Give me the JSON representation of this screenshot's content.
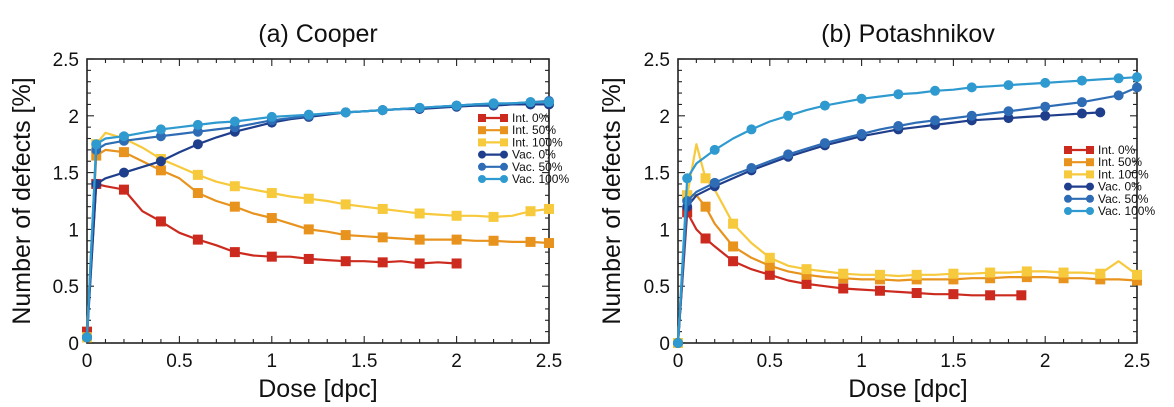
{
  "chart_data": [
    {
      "type": "line",
      "title": "(a) Cooper",
      "xlabel": "Dose [dpc]",
      "ylabel": "Number of defects [%]",
      "xlim": [
        0,
        2.5
      ],
      "ylim": [
        0,
        2.5
      ],
      "xticks": [
        "0",
        "0.5",
        "1",
        "1.5",
        "2",
        "2.5"
      ],
      "yticks": [
        "0",
        "0.5",
        "1",
        "1.5",
        "2",
        "2.5"
      ],
      "legend_position": "right, near top",
      "grid": false,
      "series": [
        {
          "name": "Int.   0%",
          "color": "#cc2a1e",
          "marker": "square",
          "x": [
            0,
            0.05,
            0.1,
            0.2,
            0.3,
            0.4,
            0.5,
            0.6,
            0.7,
            0.8,
            0.9,
            1.0,
            1.1,
            1.2,
            1.3,
            1.4,
            1.5,
            1.6,
            1.7,
            1.8,
            1.9,
            2.0
          ],
          "y": [
            0.1,
            1.4,
            1.38,
            1.35,
            1.16,
            1.07,
            0.97,
            0.91,
            0.86,
            0.8,
            0.77,
            0.76,
            0.76,
            0.74,
            0.73,
            0.72,
            0.72,
            0.71,
            0.72,
            0.7,
            0.71,
            0.7
          ]
        },
        {
          "name": "Int.   50%",
          "color": "#e8931d",
          "marker": "square",
          "x": [
            0,
            0.05,
            0.1,
            0.2,
            0.3,
            0.4,
            0.5,
            0.6,
            0.7,
            0.8,
            0.9,
            1.0,
            1.1,
            1.2,
            1.3,
            1.4,
            1.5,
            1.6,
            1.7,
            1.8,
            1.9,
            2.0,
            2.1,
            2.2,
            2.3,
            2.4,
            2.5
          ],
          "y": [
            0.05,
            1.65,
            1.7,
            1.68,
            1.6,
            1.52,
            1.45,
            1.32,
            1.25,
            1.2,
            1.14,
            1.1,
            1.05,
            1.0,
            0.98,
            0.95,
            0.94,
            0.93,
            0.92,
            0.91,
            0.91,
            0.91,
            0.9,
            0.9,
            0.89,
            0.89,
            0.88
          ]
        },
        {
          "name": "Int.   100%",
          "color": "#f7c93c",
          "marker": "square",
          "x": [
            0,
            0.05,
            0.1,
            0.2,
            0.3,
            0.4,
            0.5,
            0.6,
            0.7,
            0.8,
            0.9,
            1.0,
            1.1,
            1.2,
            1.3,
            1.4,
            1.5,
            1.6,
            1.7,
            1.8,
            1.9,
            2.0,
            2.1,
            2.2,
            2.3,
            2.4,
            2.5
          ],
          "y": [
            0.05,
            1.75,
            1.85,
            1.8,
            1.72,
            1.62,
            1.55,
            1.48,
            1.42,
            1.38,
            1.35,
            1.32,
            1.29,
            1.27,
            1.25,
            1.22,
            1.2,
            1.18,
            1.16,
            1.14,
            1.13,
            1.12,
            1.12,
            1.11,
            1.12,
            1.16,
            1.18
          ]
        },
        {
          "name": "Vac. 0%",
          "color": "#1f3e8c",
          "marker": "circle",
          "x": [
            0,
            0.05,
            0.1,
            0.2,
            0.3,
            0.4,
            0.5,
            0.6,
            0.7,
            0.8,
            0.9,
            1.0,
            1.1,
            1.2,
            1.3,
            1.4,
            1.5,
            1.6,
            1.7,
            1.8,
            1.9,
            2.0,
            2.1,
            2.2,
            2.3,
            2.4,
            2.5
          ],
          "y": [
            0.05,
            1.4,
            1.45,
            1.5,
            1.55,
            1.6,
            1.68,
            1.75,
            1.81,
            1.86,
            1.9,
            1.94,
            1.97,
            1.99,
            2.01,
            2.03,
            2.04,
            2.05,
            2.06,
            2.06,
            2.07,
            2.08,
            2.09,
            2.09,
            2.1,
            2.1,
            2.1
          ]
        },
        {
          "name": "Vac. 50%",
          "color": "#2e6db5",
          "marker": "circle",
          "x": [
            0,
            0.05,
            0.1,
            0.2,
            0.3,
            0.4,
            0.5,
            0.6,
            0.7,
            0.8,
            0.9,
            1.0,
            1.1,
            1.2,
            1.3,
            1.4,
            1.5,
            1.6,
            1.7,
            1.8,
            1.9,
            2.0,
            2.1,
            2.2,
            2.3,
            2.4,
            2.5
          ],
          "y": [
            0.05,
            1.7,
            1.75,
            1.78,
            1.8,
            1.82,
            1.84,
            1.86,
            1.88,
            1.9,
            1.93,
            1.96,
            1.98,
            2.0,
            2.02,
            2.03,
            2.04,
            2.05,
            2.06,
            2.07,
            2.08,
            2.09,
            2.1,
            2.1,
            2.11,
            2.12,
            2.13
          ]
        },
        {
          "name": "Vac. 100%",
          "color": "#2e9ad0",
          "marker": "circle",
          "x": [
            0,
            0.05,
            0.1,
            0.2,
            0.3,
            0.4,
            0.5,
            0.6,
            0.7,
            0.8,
            0.9,
            1.0,
            1.1,
            1.2,
            1.3,
            1.4,
            1.5,
            1.6,
            1.7,
            1.8,
            1.9,
            2.0,
            2.1,
            2.2,
            2.3,
            2.4,
            2.5
          ],
          "y": [
            0.05,
            1.75,
            1.8,
            1.82,
            1.85,
            1.88,
            1.9,
            1.92,
            1.94,
            1.95,
            1.97,
            1.99,
            2.0,
            2.01,
            2.02,
            2.03,
            2.04,
            2.05,
            2.06,
            2.07,
            2.08,
            2.09,
            2.1,
            2.11,
            2.11,
            2.12,
            2.12
          ]
        }
      ]
    },
    {
      "type": "line",
      "title": "(b) Potashnikov",
      "xlabel": "Dose [dpc]",
      "ylabel": "Number of defects [%]",
      "xlim": [
        0,
        2.5
      ],
      "ylim": [
        0,
        2.5
      ],
      "xticks": [
        "0",
        "0.5",
        "1",
        "1.5",
        "2",
        "2.5"
      ],
      "yticks": [
        "0",
        "0.5",
        "1",
        "1.5",
        "2",
        "2.5"
      ],
      "legend_position": "right, middle",
      "grid": false,
      "series": [
        {
          "name": "Int.   0%",
          "color": "#cc2a1e",
          "marker": "square",
          "x": [
            0,
            0.05,
            0.1,
            0.15,
            0.2,
            0.3,
            0.4,
            0.5,
            0.6,
            0.7,
            0.8,
            0.9,
            1.0,
            1.1,
            1.2,
            1.3,
            1.4,
            1.5,
            1.6,
            1.7,
            1.8,
            1.87
          ],
          "y": [
            0,
            1.15,
            1.0,
            0.92,
            0.85,
            0.72,
            0.65,
            0.6,
            0.55,
            0.52,
            0.5,
            0.48,
            0.47,
            0.46,
            0.45,
            0.44,
            0.43,
            0.43,
            0.42,
            0.42,
            0.42,
            0.42
          ]
        },
        {
          "name": "Int.   50%",
          "color": "#e8931d",
          "marker": "square",
          "x": [
            0,
            0.05,
            0.1,
            0.15,
            0.2,
            0.3,
            0.4,
            0.5,
            0.6,
            0.7,
            0.8,
            0.9,
            1.0,
            1.1,
            1.2,
            1.3,
            1.4,
            1.5,
            1.6,
            1.7,
            1.8,
            1.9,
            2.0,
            2.1,
            2.2,
            2.3,
            2.4,
            2.5
          ],
          "y": [
            0,
            1.3,
            1.3,
            1.2,
            1.05,
            0.85,
            0.75,
            0.68,
            0.63,
            0.6,
            0.58,
            0.57,
            0.56,
            0.56,
            0.55,
            0.56,
            0.56,
            0.56,
            0.57,
            0.57,
            0.58,
            0.58,
            0.58,
            0.57,
            0.57,
            0.56,
            0.56,
            0.55
          ]
        },
        {
          "name": "Int.   100%",
          "color": "#f7c93c",
          "marker": "square",
          "x": [
            0,
            0.05,
            0.1,
            0.15,
            0.2,
            0.3,
            0.4,
            0.5,
            0.6,
            0.7,
            0.8,
            0.9,
            1.0,
            1.1,
            1.2,
            1.3,
            1.4,
            1.5,
            1.6,
            1.7,
            1.8,
            1.9,
            2.0,
            2.1,
            2.2,
            2.3,
            2.4,
            2.5
          ],
          "y": [
            0,
            1.3,
            1.75,
            1.45,
            1.35,
            1.05,
            0.88,
            0.75,
            0.68,
            0.65,
            0.63,
            0.61,
            0.6,
            0.6,
            0.59,
            0.6,
            0.6,
            0.61,
            0.61,
            0.62,
            0.62,
            0.63,
            0.63,
            0.62,
            0.62,
            0.61,
            0.72,
            0.6
          ]
        },
        {
          "name": "Vac. 0%",
          "color": "#1f3e8c",
          "marker": "circle",
          "x": [
            0,
            0.05,
            0.1,
            0.2,
            0.3,
            0.4,
            0.5,
            0.6,
            0.7,
            0.8,
            0.9,
            1.0,
            1.1,
            1.2,
            1.3,
            1.4,
            1.5,
            1.6,
            1.7,
            1.8,
            1.9,
            2.0,
            2.1,
            2.2,
            2.3
          ],
          "y": [
            0,
            1.2,
            1.3,
            1.38,
            1.45,
            1.52,
            1.58,
            1.64,
            1.69,
            1.74,
            1.78,
            1.82,
            1.85,
            1.88,
            1.9,
            1.92,
            1.94,
            1.96,
            1.97,
            1.98,
            1.99,
            2.0,
            2.01,
            2.02,
            2.03
          ]
        },
        {
          "name": "Vac. 50%",
          "color": "#2e6db5",
          "marker": "circle",
          "x": [
            0,
            0.05,
            0.1,
            0.2,
            0.3,
            0.4,
            0.5,
            0.6,
            0.7,
            0.8,
            0.9,
            1.0,
            1.1,
            1.2,
            1.3,
            1.4,
            1.5,
            1.6,
            1.7,
            1.8,
            1.9,
            2.0,
            2.1,
            2.2,
            2.3,
            2.4,
            2.5
          ],
          "y": [
            0,
            1.25,
            1.33,
            1.41,
            1.48,
            1.54,
            1.6,
            1.66,
            1.71,
            1.76,
            1.8,
            1.84,
            1.88,
            1.91,
            1.94,
            1.96,
            1.98,
            2.0,
            2.02,
            2.04,
            2.06,
            2.08,
            2.1,
            2.12,
            2.15,
            2.18,
            2.25
          ]
        },
        {
          "name": "Vac. 100%",
          "color": "#2e9ad0",
          "marker": "circle",
          "x": [
            0,
            0.05,
            0.1,
            0.2,
            0.3,
            0.4,
            0.5,
            0.6,
            0.7,
            0.8,
            0.9,
            1.0,
            1.1,
            1.2,
            1.3,
            1.4,
            1.5,
            1.6,
            1.7,
            1.8,
            1.9,
            2.0,
            2.1,
            2.2,
            2.3,
            2.4,
            2.5
          ],
          "y": [
            0,
            1.45,
            1.58,
            1.7,
            1.8,
            1.88,
            1.95,
            2.0,
            2.05,
            2.09,
            2.12,
            2.15,
            2.17,
            2.19,
            2.2,
            2.22,
            2.23,
            2.25,
            2.26,
            2.27,
            2.28,
            2.29,
            2.3,
            2.31,
            2.32,
            2.33,
            2.34
          ]
        }
      ]
    }
  ]
}
